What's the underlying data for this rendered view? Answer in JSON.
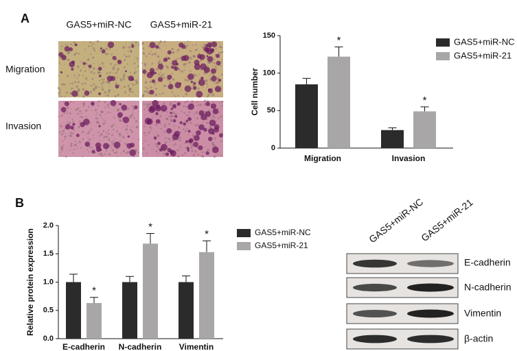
{
  "figure": {
    "panel_a": "A",
    "panel_b": "B",
    "image_columns": [
      "GAS5+miR-NC",
      "GAS5+miR-21"
    ],
    "image_rows": [
      "Migration",
      "Invasion"
    ],
    "blot_columns": [
      "GAS5+miR-NC",
      "GAS5+miR-21"
    ],
    "blot_rows": [
      "E-cadherin",
      "N-cadherin",
      "Vimentin",
      "β-actin"
    ]
  },
  "chart_data": [
    {
      "type": "bar",
      "ylabel": "Cell number",
      "categories": [
        "Migration",
        "Invasion"
      ],
      "series": [
        {
          "name": "GAS5+miR-NC",
          "color": "#2b2b2b",
          "values": [
            85,
            24
          ],
          "errors": [
            8,
            3
          ]
        },
        {
          "name": "GAS5+miR-21",
          "color": "#a9a6a8",
          "values": [
            122,
            49
          ],
          "errors": [
            13,
            6
          ],
          "markers": [
            "*",
            "*"
          ]
        }
      ],
      "ylim": [
        0,
        150
      ],
      "yticks": [
        0,
        50,
        100,
        150
      ]
    },
    {
      "type": "bar",
      "ylabel": "Relative protein expression",
      "categories": [
        "E-cadherin",
        "N-cadherin",
        "Vimentin"
      ],
      "series": [
        {
          "name": "GAS5+miR-NC",
          "color": "#2b2b2b",
          "values": [
            1.0,
            1.0,
            1.0
          ],
          "errors": [
            0.14,
            0.1,
            0.11
          ]
        },
        {
          "name": "GAS5+miR-21",
          "color": "#a9a6a8",
          "values": [
            0.63,
            1.68,
            1.53
          ],
          "errors": [
            0.1,
            0.18,
            0.2
          ],
          "markers": [
            "*",
            "*",
            "*"
          ]
        }
      ],
      "ylim": [
        0,
        2.0
      ],
      "yticks": [
        {
          "value": 0,
          "label": "0.0"
        },
        0.5,
        {
          "value": 1,
          "label": "1.0"
        },
        1.5,
        {
          "value": 2,
          "label": "2.0"
        }
      ]
    }
  ]
}
